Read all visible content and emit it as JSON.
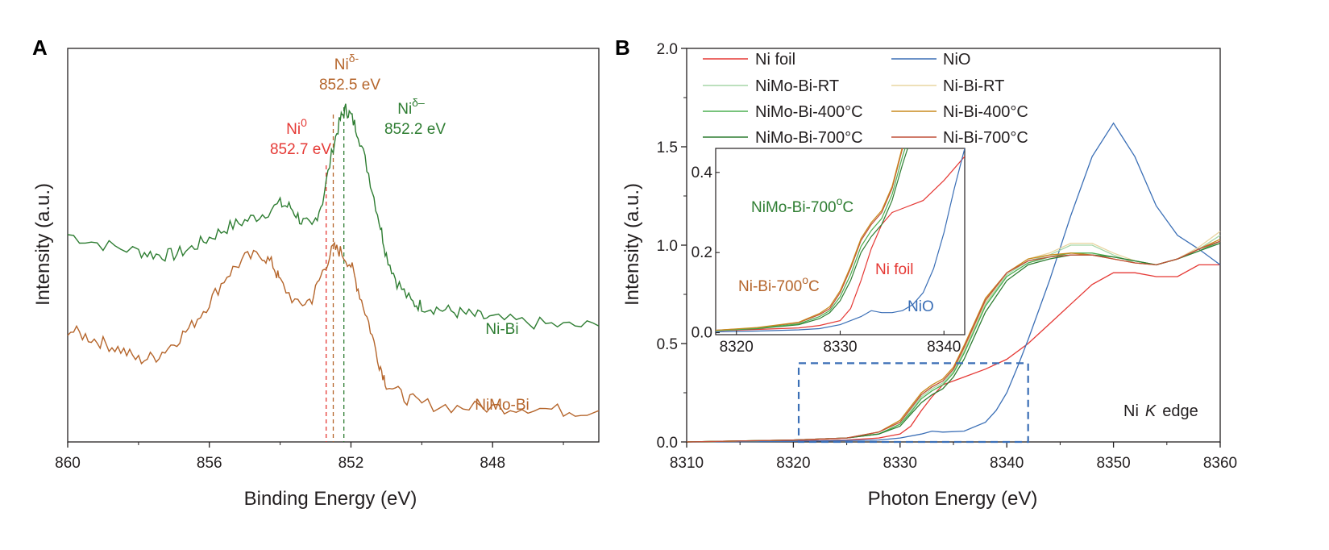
{
  "chart_data": [
    {
      "panel": "A",
      "type": "line",
      "title": "",
      "xlabel": "Binding Energy (eV)",
      "ylabel": "Intensity (a.u.)",
      "xlim": [
        860,
        845
      ],
      "xdirection": "reversed",
      "xticks": [
        860,
        856,
        852,
        848
      ],
      "yticks": [],
      "series": [
        {
          "name": "Ni-Bi",
          "color": "#2e7d32",
          "x": [
            860,
            859,
            858,
            857.5,
            857,
            856.5,
            856,
            855.5,
            855,
            854.5,
            854,
            853.7,
            853.4,
            853.1,
            852.8,
            852.5,
            852.3,
            852.15,
            852,
            851.8,
            851.5,
            851.2,
            851,
            850.7,
            850.3,
            850,
            849.5,
            849,
            848.5,
            848,
            847,
            846,
            845
          ],
          "values": [
            0.56,
            0.53,
            0.51,
            0.5,
            0.5,
            0.52,
            0.55,
            0.58,
            0.6,
            0.62,
            0.65,
            0.64,
            0.6,
            0.58,
            0.66,
            0.82,
            0.9,
            0.93,
            0.91,
            0.86,
            0.74,
            0.6,
            0.5,
            0.42,
            0.36,
            0.35,
            0.34,
            0.33,
            0.32,
            0.31,
            0.3,
            0.29,
            0.29
          ]
        },
        {
          "name": "NiMo-Bi",
          "color": "#b5652b",
          "x": [
            860,
            859.5,
            859,
            858.5,
            858,
            857.5,
            857,
            856.5,
            856,
            855.5,
            855,
            854.5,
            854.2,
            854,
            853.5,
            853.1,
            852.8,
            852.5,
            852.3,
            852,
            851.8,
            851.5,
            851.2,
            851,
            850.5,
            850,
            849,
            848,
            847,
            846,
            845
          ],
          "values": [
            0.28,
            0.26,
            0.24,
            0.22,
            0.19,
            0.2,
            0.24,
            0.29,
            0.36,
            0.44,
            0.49,
            0.5,
            0.47,
            0.42,
            0.35,
            0.37,
            0.45,
            0.52,
            0.51,
            0.47,
            0.4,
            0.3,
            0.18,
            0.12,
            0.08,
            0.06,
            0.05,
            0.05,
            0.05,
            0.04,
            0.04
          ]
        }
      ],
      "series_labels": [
        "Ni-Bi",
        "NiMo-Bi"
      ],
      "reference_lines": [
        {
          "x": 852.7,
          "color": "#e53935",
          "label_top": "Ni",
          "label_sup": "0",
          "label_value": "852.7 eV"
        },
        {
          "x": 852.5,
          "color": "#b5652b",
          "label_top": "Ni",
          "label_sup": "δ-",
          "label_value": "852.5 eV"
        },
        {
          "x": 852.2,
          "color": "#2e7d32",
          "label_top": "Ni",
          "label_sup": "δ–",
          "label_value": "852.2 eV"
        }
      ]
    },
    {
      "panel": "B",
      "type": "line",
      "title": "",
      "xlabel": "Photon Energy (eV)",
      "ylabel": "Intensity (a.u.)",
      "xlim": [
        8310,
        8360
      ],
      "ylim": [
        0,
        2.0
      ],
      "xticks": [
        8310,
        8320,
        8330,
        8340,
        8350,
        8360
      ],
      "yticks": [
        0.0,
        0.5,
        1.0,
        1.5,
        2.0
      ],
      "ytick_labels": [
        "0.0",
        "0.5",
        "1.0",
        "1.5",
        "2.0"
      ],
      "annotation": {
        "prefix": "Ni",
        "italic": "K",
        "suffix": "edge"
      },
      "zoom_box": {
        "x": [
          8320.5,
          8342
        ],
        "y": [
          0.0,
          0.4
        ]
      },
      "legend": [
        {
          "label": "Ni foil",
          "color": "#e53935"
        },
        {
          "label": "NiO",
          "color": "#3b6fb6"
        },
        {
          "label": "NiMo-Bi-RT",
          "color": "#a5d6a7"
        },
        {
          "label": "Ni-Bi-RT",
          "color": "#e8d5a0"
        },
        {
          "label": "NiMo-Bi-400°C",
          "color": "#4caf50"
        },
        {
          "label": "Ni-Bi-400°C",
          "color": "#c98a1e"
        },
        {
          "label": "NiMo-Bi-700°C",
          "color": "#2e7d32"
        },
        {
          "label": "Ni-Bi-700°C",
          "color": "#c0503a"
        }
      ],
      "series": [
        {
          "name": "Ni foil",
          "color": "#e53935",
          "x": [
            8310,
            8320,
            8325,
            8328,
            8330,
            8331,
            8332,
            8333,
            8334,
            8335,
            8336,
            8338,
            8340,
            8342,
            8344,
            8346,
            8348,
            8350,
            8352,
            8354,
            8356,
            8358,
            8360
          ],
          "values": [
            0.0,
            0.005,
            0.01,
            0.02,
            0.04,
            0.08,
            0.16,
            0.23,
            0.29,
            0.31,
            0.33,
            0.37,
            0.42,
            0.5,
            0.6,
            0.7,
            0.8,
            0.86,
            0.86,
            0.84,
            0.84,
            0.9,
            0.9
          ]
        },
        {
          "name": "NiO",
          "color": "#3b6fb6",
          "x": [
            8310,
            8320,
            8328,
            8330,
            8332,
            8333,
            8334,
            8336,
            8338,
            8339,
            8340,
            8341,
            8342,
            8344,
            8346,
            8348,
            8350,
            8352,
            8354,
            8356,
            8358,
            8360
          ],
          "values": [
            0.0,
            0.003,
            0.01,
            0.02,
            0.04,
            0.055,
            0.05,
            0.055,
            0.1,
            0.16,
            0.25,
            0.38,
            0.52,
            0.82,
            1.15,
            1.45,
            1.62,
            1.45,
            1.2,
            1.05,
            0.98,
            0.9
          ]
        },
        {
          "name": "NiMo-Bi-RT",
          "color": "#a5d6a7",
          "x": [
            8310,
            8320,
            8325,
            8328,
            8330,
            8331,
            8332,
            8333,
            8334,
            8335,
            8336,
            8337,
            8338,
            8340,
            8342,
            8344,
            8346,
            8348,
            8350,
            8352,
            8354,
            8356,
            8358,
            8360
          ],
          "values": [
            0.0,
            0.01,
            0.02,
            0.04,
            0.09,
            0.16,
            0.23,
            0.27,
            0.3,
            0.36,
            0.46,
            0.58,
            0.7,
            0.85,
            0.92,
            0.95,
            1.0,
            1.0,
            0.95,
            0.91,
            0.9,
            0.93,
            0.98,
            1.05
          ]
        },
        {
          "name": "Ni-Bi-RT",
          "color": "#e8d5a0",
          "x": [
            8310,
            8320,
            8325,
            8328,
            8330,
            8331,
            8332,
            8333,
            8334,
            8335,
            8336,
            8337,
            8338,
            8340,
            8342,
            8344,
            8346,
            8348,
            8350,
            8352,
            8354,
            8356,
            8358,
            8360
          ],
          "values": [
            0.0,
            0.01,
            0.02,
            0.05,
            0.1,
            0.17,
            0.24,
            0.28,
            0.31,
            0.37,
            0.47,
            0.59,
            0.71,
            0.86,
            0.93,
            0.96,
            1.01,
            1.01,
            0.96,
            0.92,
            0.9,
            0.93,
            0.99,
            1.07
          ]
        },
        {
          "name": "NiMo-Bi-400°C",
          "color": "#4caf50",
          "x": [
            8310,
            8320,
            8325,
            8328,
            8330,
            8331,
            8332,
            8333,
            8334,
            8335,
            8336,
            8337,
            8338,
            8340,
            8342,
            8344,
            8346,
            8348,
            8350,
            8352,
            8354,
            8356,
            8358,
            8360
          ],
          "values": [
            0.0,
            0.01,
            0.02,
            0.04,
            0.09,
            0.15,
            0.22,
            0.26,
            0.29,
            0.35,
            0.45,
            0.57,
            0.69,
            0.84,
            0.91,
            0.94,
            0.96,
            0.96,
            0.94,
            0.92,
            0.9,
            0.93,
            0.97,
            1.02
          ]
        },
        {
          "name": "Ni-Bi-400°C",
          "color": "#c98a1e",
          "x": [
            8310,
            8320,
            8325,
            8328,
            8330,
            8331,
            8332,
            8333,
            8334,
            8335,
            8336,
            8337,
            8338,
            8340,
            8342,
            8344,
            8346,
            8348,
            8350,
            8352,
            8354,
            8356,
            8358,
            8360
          ],
          "values": [
            0.0,
            0.01,
            0.02,
            0.05,
            0.11,
            0.18,
            0.25,
            0.29,
            0.32,
            0.38,
            0.49,
            0.61,
            0.73,
            0.86,
            0.93,
            0.95,
            0.96,
            0.95,
            0.93,
            0.91,
            0.9,
            0.93,
            0.98,
            1.03
          ]
        },
        {
          "name": "NiMo-Bi-700°C",
          "color": "#2e7d32",
          "x": [
            8310,
            8320,
            8325,
            8328,
            8330,
            8331,
            8332,
            8333,
            8334,
            8335,
            8336,
            8337,
            8338,
            8340,
            8342,
            8344,
            8346,
            8348,
            8350,
            8352,
            8354,
            8356,
            8358,
            8360
          ],
          "values": [
            0.0,
            0.01,
            0.02,
            0.04,
            0.08,
            0.14,
            0.2,
            0.24,
            0.27,
            0.33,
            0.42,
            0.54,
            0.66,
            0.82,
            0.9,
            0.93,
            0.95,
            0.95,
            0.94,
            0.92,
            0.9,
            0.93,
            0.97,
            1.01
          ]
        },
        {
          "name": "Ni-Bi-700°C",
          "color": "#c0503a",
          "x": [
            8310,
            8320,
            8325,
            8328,
            8330,
            8331,
            8332,
            8333,
            8334,
            8335,
            8336,
            8337,
            8338,
            8340,
            8342,
            8344,
            8346,
            8348,
            8350,
            8352,
            8354,
            8356,
            8358,
            8360
          ],
          "values": [
            0.0,
            0.01,
            0.02,
            0.05,
            0.1,
            0.17,
            0.24,
            0.28,
            0.31,
            0.37,
            0.48,
            0.6,
            0.72,
            0.86,
            0.92,
            0.94,
            0.95,
            0.95,
            0.93,
            0.91,
            0.9,
            0.93,
            0.98,
            1.02
          ]
        }
      ],
      "inset": {
        "type": "line",
        "xlim": [
          8318,
          8342
        ],
        "ylim": [
          -0.005,
          0.46
        ],
        "xticks": [
          8320,
          8330,
          8340
        ],
        "yticks": [
          0.0,
          0.2,
          0.4
        ],
        "ytick_labels": [
          "0.0",
          "0.2",
          "0.4"
        ],
        "labels": [
          {
            "text": "NiMo-Bi-700",
            "sup": "o",
            "suffix": "C",
            "color": "#2e7d32"
          },
          {
            "text": "Ni-Bi-700",
            "sup": "o",
            "suffix": "C",
            "color": "#b5652b"
          },
          {
            "text": "Ni foil",
            "color": "#e53935"
          },
          {
            "text": "NiO",
            "color": "#3b6fb6"
          }
        ],
        "series": [
          {
            "name": "Ni foil",
            "color": "#e53935",
            "x": [
              8318,
              8322,
              8326,
              8328,
              8330,
              8331,
              8332,
              8333,
              8334,
              8335,
              8336,
              8338,
              8340,
              8342
            ],
            "values": [
              0.005,
              0.008,
              0.012,
              0.018,
              0.03,
              0.06,
              0.13,
              0.21,
              0.27,
              0.3,
              0.31,
              0.33,
              0.38,
              0.44
            ]
          },
          {
            "name": "NiO",
            "color": "#3b6fb6",
            "x": [
              8318,
              8322,
              8326,
              8328,
              8330,
              8332,
              8333,
              8334,
              8335,
              8336,
              8337,
              8338,
              8339,
              8340,
              8341,
              8342
            ],
            "values": [
              0.002,
              0.004,
              0.007,
              0.01,
              0.02,
              0.04,
              0.055,
              0.05,
              0.05,
              0.055,
              0.07,
              0.1,
              0.16,
              0.25,
              0.36,
              0.46
            ]
          },
          {
            "name": "NiMo-Bi-700°C",
            "color": "#2e7d32",
            "x": [
              8318,
              8322,
              8326,
              8328,
              8329,
              8330,
              8331,
              8332,
              8333,
              8334,
              8335,
              8336,
              8337,
              8338
            ],
            "values": [
              0.005,
              0.01,
              0.02,
              0.035,
              0.05,
              0.08,
              0.13,
              0.2,
              0.24,
              0.27,
              0.33,
              0.42,
              0.5,
              0.62
            ]
          },
          {
            "name": "Ni-Bi-700°C",
            "color": "#c0503a",
            "x": [
              8318,
              8322,
              8326,
              8328,
              8329,
              8330,
              8331,
              8332,
              8333,
              8334,
              8335,
              8336,
              8337,
              8338
            ],
            "values": [
              0.006,
              0.012,
              0.025,
              0.045,
              0.06,
              0.1,
              0.16,
              0.23,
              0.27,
              0.3,
              0.36,
              0.46,
              0.55,
              0.66
            ]
          },
          {
            "name": "NiMo-Bi-400°C",
            "color": "#4caf50",
            "x": [
              8318,
              8322,
              8326,
              8328,
              8329,
              8330,
              8331,
              8332,
              8333,
              8334,
              8335,
              8336,
              8337,
              8338
            ],
            "values": [
              0.005,
              0.011,
              0.022,
              0.04,
              0.055,
              0.09,
              0.145,
              0.215,
              0.255,
              0.285,
              0.345,
              0.44,
              0.52,
              0.64
            ]
          },
          {
            "name": "Ni-Bi-400°C",
            "color": "#c98a1e",
            "x": [
              8318,
              8322,
              8326,
              8328,
              8329,
              8330,
              8331,
              8332,
              8333,
              8334,
              8335,
              8336,
              8337,
              8338
            ],
            "values": [
              0.006,
              0.013,
              0.026,
              0.048,
              0.065,
              0.105,
              0.165,
              0.235,
              0.275,
              0.305,
              0.365,
              0.465,
              0.56,
              0.67
            ]
          }
        ]
      }
    }
  ]
}
